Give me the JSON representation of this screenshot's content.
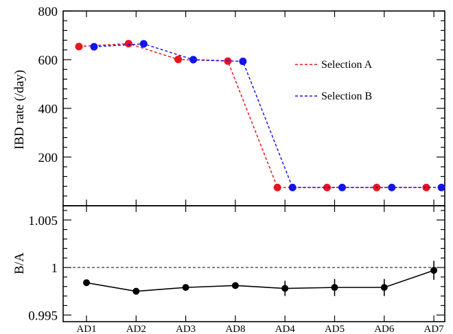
{
  "chart_data": [
    {
      "type": "line",
      "title": "",
      "ylabel": "IBD rate (/day)",
      "xlabel": "",
      "categories": [
        "AD1",
        "AD2",
        "AD3",
        "AD8",
        "AD4",
        "AD5",
        "AD6",
        "AD7"
      ],
      "ylim": [
        0,
        800
      ],
      "yticks": [
        200,
        400,
        600,
        800
      ],
      "legend_position": "top-right",
      "series": [
        {
          "name": "Selection A",
          "color": "#e8141e",
          "line_style": "dashed",
          "values": [
            654,
            666,
            601,
            594,
            75,
            75,
            75,
            75
          ]
        },
        {
          "name": "Selection B",
          "color": "#1414e8",
          "line_style": "dashed",
          "values": [
            653,
            665,
            600,
            593,
            75,
            75,
            75,
            75
          ]
        }
      ]
    },
    {
      "type": "scatter",
      "title": "",
      "ylabel": "B/A",
      "xlabel": "",
      "categories": [
        "AD1",
        "AD2",
        "AD3",
        "AD8",
        "AD4",
        "AD5",
        "AD6",
        "AD7"
      ],
      "ylim": [
        0.9943,
        1.0065
      ],
      "yticks": [
        0.995,
        1,
        1.005
      ],
      "ytick_labels": [
        "0.995",
        "1",
        "1.005"
      ],
      "reference_line": 1,
      "values": [
        0.9984,
        0.9975,
        0.9979,
        0.9981,
        0.9978,
        0.9979,
        0.9979,
        0.9997
      ],
      "errors": [
        0.0002,
        0.0002,
        0.0002,
        0.0002,
        0.0008,
        0.0009,
        0.0009,
        0.001
      ]
    }
  ]
}
